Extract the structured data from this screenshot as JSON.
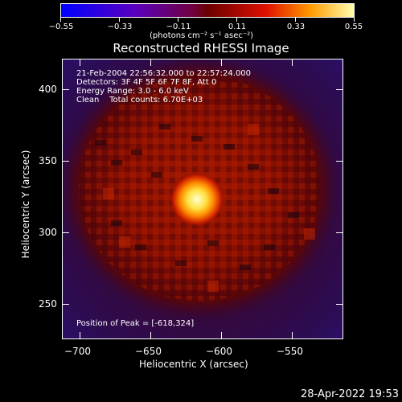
{
  "colorbar": {
    "ticks": [
      "−0.55",
      "−0.33",
      "−0.11",
      "0.11",
      "0.33",
      "0.55"
    ],
    "units": "(photons cm⁻² s⁻¹ asec⁻²)"
  },
  "title": "Reconstructed RHESSI Image",
  "info": {
    "time": "21-Feb-2004 22:56:32.000 to 22:57:24.000",
    "detectors": "Detectors: 3F 4F 5F 6F 7F 8F, Att 0",
    "energy": "Energy Range: 3.0 - 6.0 keV",
    "clean": "Clean    Total counts: 6.70E+03"
  },
  "peak": "Position of Peak = [-618,324]",
  "x_axis": {
    "label": "Heliocentric X (arcsec)",
    "ticks": [
      "−700",
      "−650",
      "−600",
      "−550"
    ]
  },
  "y_axis": {
    "label": "Heliocentric Y (arcsec)",
    "ticks": [
      "400",
      "350",
      "300",
      "250"
    ]
  },
  "timestamp": "28-Apr-2022 19:53"
}
